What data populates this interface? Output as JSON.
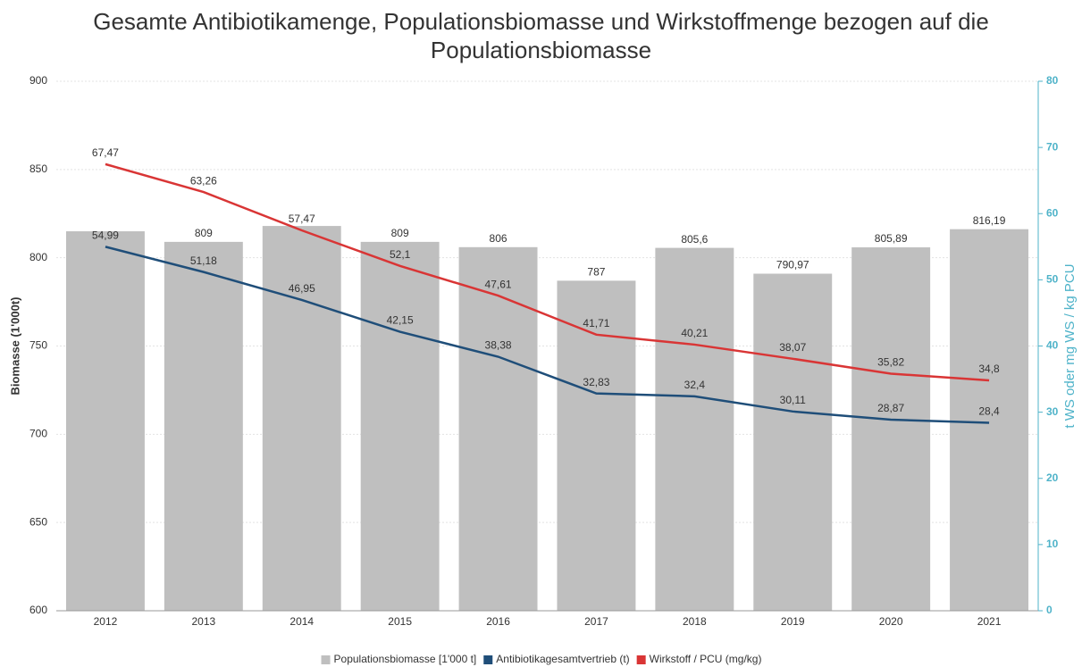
{
  "chart_data": {
    "type": "bar-line",
    "title": "Gesamte Antibiotikamenge, Populationsbiomasse und Wirkstoffmenge bezogen auf die Populationsbiomasse",
    "ylabel": "Biomasse (1'000t)",
    "y2label": "t WS oder mg WS / kg PCU",
    "categories": [
      "2012",
      "2013",
      "2014",
      "2015",
      "2016",
      "2017",
      "2018",
      "2019",
      "2020",
      "2021"
    ],
    "ylim": [
      600,
      900
    ],
    "yticks": [
      600,
      650,
      700,
      750,
      800,
      850,
      900
    ],
    "y2lim": [
      0,
      80
    ],
    "y2ticks": [
      0,
      10,
      20,
      30,
      40,
      50,
      60,
      70,
      80
    ],
    "grid": true,
    "legend": "bottom",
    "series": [
      {
        "name": "Populationsbiomasse [1'000 t]",
        "type": "bar",
        "color": "#bfbfbf",
        "values": [
          815,
          809,
          818,
          809,
          806,
          787,
          805.6,
          790.97,
          805.89,
          816.19
        ],
        "value_labels": [
          null,
          "809",
          null,
          "809",
          "806",
          "787",
          "805,6",
          "790,97",
          "805,89",
          "816,19"
        ]
      },
      {
        "name": "Antibiotikagesamtvertrieb (t)",
        "type": "line",
        "axis": "y2",
        "color": "#1f4e79",
        "values": [
          54.99,
          51.18,
          46.95,
          42.15,
          38.38,
          32.83,
          32.4,
          30.11,
          28.87,
          28.4
        ],
        "value_labels": [
          "54,99",
          "51,18",
          "46,95",
          "42,15",
          "38,38",
          "32,83",
          "32,4",
          "30,11",
          "28,87",
          "28,4"
        ]
      },
      {
        "name": "Wirkstoff / PCU (mg/kg)",
        "type": "line",
        "axis": "y2",
        "color": "#d93535",
        "values": [
          67.47,
          63.26,
          57.47,
          52.1,
          47.61,
          41.71,
          40.21,
          38.07,
          35.82,
          34.8
        ],
        "value_labels": [
          "67,47",
          "63,26",
          "57,47",
          "52,1",
          "47,61",
          "41,71",
          "40,21",
          "38,07",
          "35,82",
          "34,8"
        ]
      }
    ]
  }
}
